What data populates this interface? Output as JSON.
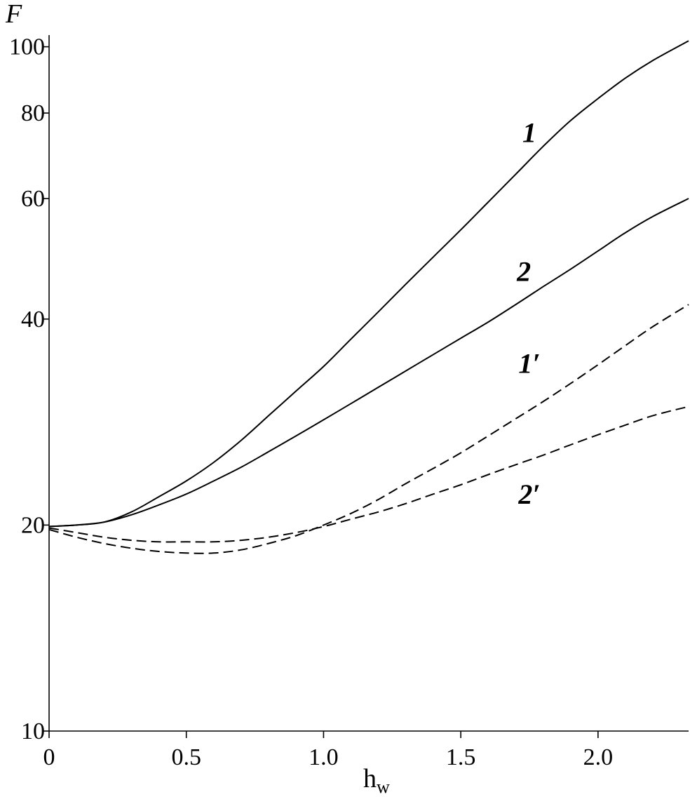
{
  "chart_data": {
    "type": "line",
    "xlabel_main": "h",
    "xlabel_sub": "w",
    "ylabel": "F",
    "xlim": [
      0,
      2.33
    ],
    "ylim": [
      10,
      104
    ],
    "yscale": "log",
    "grid": false,
    "x_ticks": [
      0,
      0.5,
      1.0,
      1.5,
      2.0
    ],
    "x_tick_labels": [
      "0",
      "0.5",
      "1.0",
      "1.5",
      "2.0"
    ],
    "y_ticks": [
      10,
      20,
      40,
      60,
      80,
      100
    ],
    "y_tick_labels": [
      "10",
      "20",
      "40",
      "60",
      "80",
      "100"
    ],
    "series": [
      {
        "name": "1",
        "style": "solid",
        "x": [
          0,
          0.1,
          0.2,
          0.3,
          0.4,
          0.5,
          0.6,
          0.7,
          0.8,
          0.9,
          1.0,
          1.1,
          1.2,
          1.3,
          1.4,
          1.5,
          1.6,
          1.7,
          1.8,
          1.9,
          2.0,
          2.1,
          2.2,
          2.33
        ],
        "values": [
          19.9,
          20.0,
          20.2,
          20.9,
          22.0,
          23.2,
          24.7,
          26.6,
          28.9,
          31.4,
          34.1,
          37.4,
          41.0,
          45.0,
          49.3,
          54.0,
          59.3,
          65.1,
          71.5,
          78.0,
          84.0,
          90.0,
          95.5,
          102.0
        ]
      },
      {
        "name": "2",
        "style": "solid",
        "x": [
          0,
          0.1,
          0.2,
          0.3,
          0.4,
          0.5,
          0.6,
          0.7,
          0.8,
          0.9,
          1.0,
          1.1,
          1.2,
          1.3,
          1.4,
          1.5,
          1.6,
          1.7,
          1.8,
          1.9,
          2.0,
          2.1,
          2.2,
          2.33
        ],
        "values": [
          19.9,
          20.0,
          20.2,
          20.7,
          21.4,
          22.2,
          23.2,
          24.3,
          25.6,
          27.0,
          28.5,
          30.1,
          31.8,
          33.6,
          35.5,
          37.5,
          39.6,
          42.0,
          44.6,
          47.3,
          50.3,
          53.5,
          56.5,
          60.0
        ]
      },
      {
        "name": "1′",
        "style": "dashed",
        "x": [
          0,
          0.1,
          0.2,
          0.3,
          0.4,
          0.5,
          0.6,
          0.7,
          0.8,
          0.9,
          1.0,
          1.1,
          1.2,
          1.3,
          1.4,
          1.5,
          1.6,
          1.7,
          1.8,
          1.9,
          2.0,
          2.1,
          2.2,
          2.33
        ],
        "values": [
          19.7,
          19.2,
          18.8,
          18.5,
          18.3,
          18.2,
          18.2,
          18.4,
          18.8,
          19.3,
          20.0,
          20.8,
          21.8,
          23.0,
          24.2,
          25.5,
          27.0,
          28.6,
          30.3,
          32.2,
          34.3,
          36.6,
          39.0,
          42.0
        ]
      },
      {
        "name": "2′",
        "style": "dashed",
        "x": [
          0,
          0.1,
          0.2,
          0.3,
          0.4,
          0.5,
          0.6,
          0.7,
          0.8,
          0.9,
          1.0,
          1.1,
          1.2,
          1.3,
          1.4,
          1.5,
          1.6,
          1.7,
          1.8,
          1.9,
          2.0,
          2.1,
          2.2,
          2.33
        ],
        "values": [
          19.8,
          19.5,
          19.2,
          19.0,
          18.9,
          18.9,
          18.9,
          19.0,
          19.2,
          19.5,
          19.9,
          20.4,
          20.9,
          21.5,
          22.2,
          22.9,
          23.7,
          24.5,
          25.3,
          26.2,
          27.1,
          28.0,
          28.9,
          29.8
        ]
      }
    ],
    "curve_labels": [
      {
        "series": "1",
        "text": "1",
        "x": 1.75,
        "y": 75
      },
      {
        "series": "2",
        "text": "2",
        "x": 1.73,
        "y": 47
      },
      {
        "series": "1′",
        "text": "1′",
        "x": 1.75,
        "y": 34.5
      },
      {
        "series": "2′",
        "text": "2′",
        "x": 1.75,
        "y": 22.2
      }
    ]
  }
}
